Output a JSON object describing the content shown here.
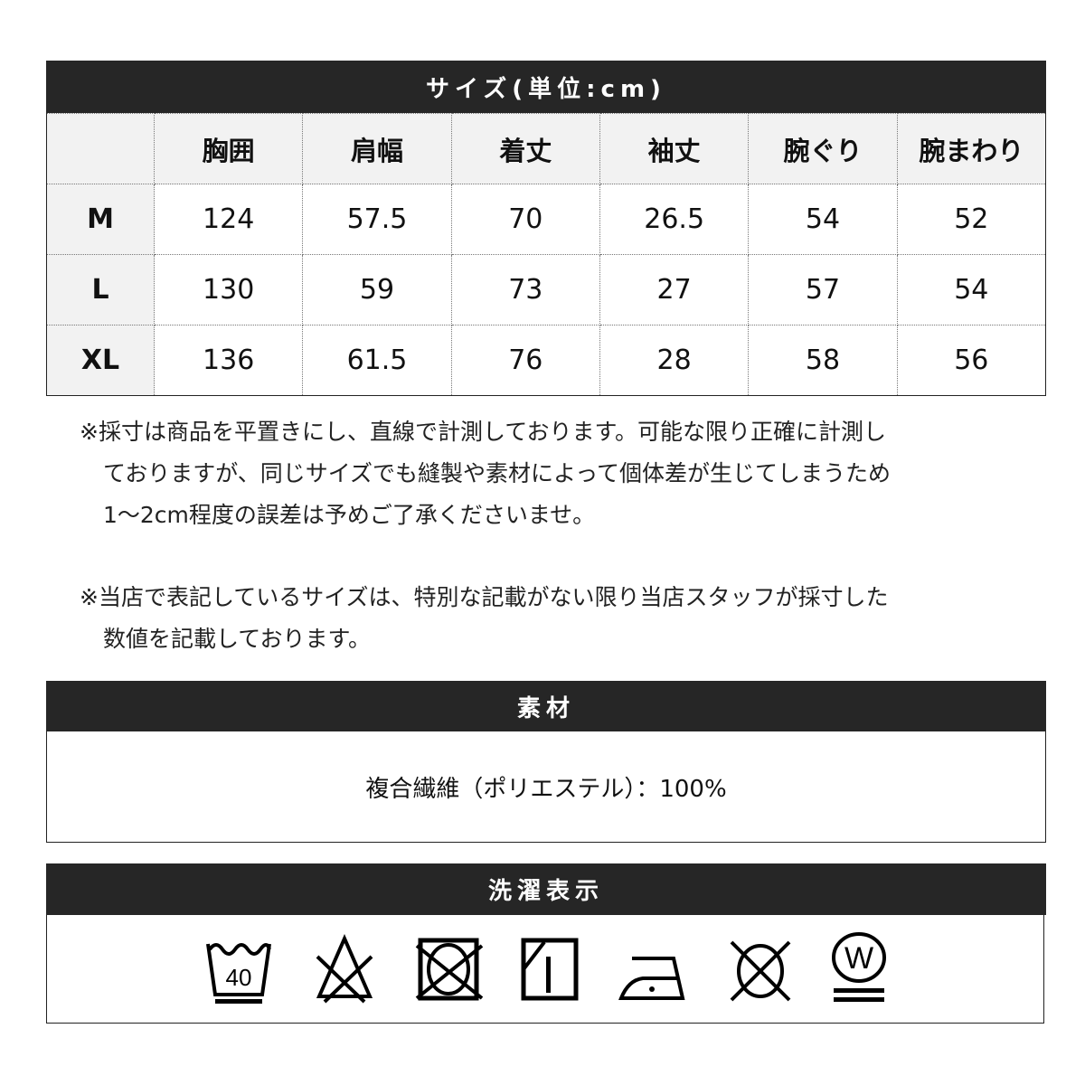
{
  "size_table": {
    "title": "サイズ(単位:cm)",
    "columns": [
      "",
      "胸囲",
      "肩幅",
      "着丈",
      "袖丈",
      "腕ぐり",
      "腕まわり"
    ],
    "rows": [
      {
        "size": "M",
        "values": [
          "124",
          "57.5",
          "70",
          "26.5",
          "54",
          "52"
        ]
      },
      {
        "size": "L",
        "values": [
          "130",
          "59",
          "73",
          "27",
          "57",
          "54"
        ]
      },
      {
        "size": "XL",
        "values": [
          "136",
          "61.5",
          "76",
          "28",
          "58",
          "56"
        ]
      }
    ]
  },
  "notes": {
    "note1": [
      "※採寸は商品を平置きにし、直線で計測しております。可能な限り正確に計測し",
      "ておりますが、同じサイズでも縫製や素材によって個体差が生じてしまうため",
      "1～2cm程度の誤差は予めご了承くださいませ。"
    ],
    "note2": [
      "※当店で表記しているサイズは、特別な記載がない限り当店スタッフが採寸した",
      "数値を記載しております。"
    ]
  },
  "material": {
    "title": "素材",
    "text": "複合繊維（ポリエステル）：100%"
  },
  "care": {
    "title": "洗濯表示",
    "wash_temp": "40",
    "wetclean_letter": "W",
    "icons": [
      "wash-40-gentle-icon",
      "no-bleach-icon",
      "no-tumble-dry-icon",
      "line-dry-shade-icon",
      "iron-low-icon",
      "no-dry-clean-icon",
      "wet-clean-very-gentle-icon"
    ]
  },
  "colors": {
    "header_bg": "#262626",
    "label_bg": "#f2f2f2"
  }
}
